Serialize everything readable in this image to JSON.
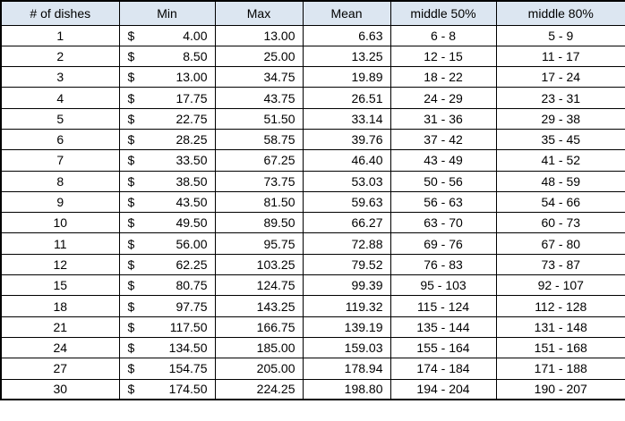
{
  "table": {
    "headers": [
      "# of dishes",
      "Min",
      "Max",
      "Mean",
      "middle 50%",
      "middle 80%"
    ],
    "currency_symbol": "$",
    "rows": [
      {
        "dishes": "1",
        "min": "4.00",
        "max": "13.00",
        "mean": "6.63",
        "mid50": "6 - 8",
        "mid80": "5 - 9"
      },
      {
        "dishes": "2",
        "min": "8.50",
        "max": "25.00",
        "mean": "13.25",
        "mid50": "12 - 15",
        "mid80": "11 - 17"
      },
      {
        "dishes": "3",
        "min": "13.00",
        "max": "34.75",
        "mean": "19.89",
        "mid50": "18 - 22",
        "mid80": "17 - 24"
      },
      {
        "dishes": "4",
        "min": "17.75",
        "max": "43.75",
        "mean": "26.51",
        "mid50": "24 - 29",
        "mid80": "23 - 31"
      },
      {
        "dishes": "5",
        "min": "22.75",
        "max": "51.50",
        "mean": "33.14",
        "mid50": "31 - 36",
        "mid80": "29 - 38"
      },
      {
        "dishes": "6",
        "min": "28.25",
        "max": "58.75",
        "mean": "39.76",
        "mid50": "37 - 42",
        "mid80": "35 - 45"
      },
      {
        "dishes": "7",
        "min": "33.50",
        "max": "67.25",
        "mean": "46.40",
        "mid50": "43 - 49",
        "mid80": "41 - 52"
      },
      {
        "dishes": "8",
        "min": "38.50",
        "max": "73.75",
        "mean": "53.03",
        "mid50": "50 - 56",
        "mid80": "48 - 59"
      },
      {
        "dishes": "9",
        "min": "43.50",
        "max": "81.50",
        "mean": "59.63",
        "mid50": "56 - 63",
        "mid80": "54 - 66"
      },
      {
        "dishes": "10",
        "min": "49.50",
        "max": "89.50",
        "mean": "66.27",
        "mid50": "63 - 70",
        "mid80": "60 - 73"
      },
      {
        "dishes": "11",
        "min": "56.00",
        "max": "95.75",
        "mean": "72.88",
        "mid50": "69 - 76",
        "mid80": "67 - 80"
      },
      {
        "dishes": "12",
        "min": "62.25",
        "max": "103.25",
        "mean": "79.52",
        "mid50": "76 - 83",
        "mid80": "73 - 87"
      },
      {
        "dishes": "15",
        "min": "80.75",
        "max": "124.75",
        "mean": "99.39",
        "mid50": "95 - 103",
        "mid80": "92 - 107"
      },
      {
        "dishes": "18",
        "min": "97.75",
        "max": "143.25",
        "mean": "119.32",
        "mid50": "115 - 124",
        "mid80": "112 - 128"
      },
      {
        "dishes": "21",
        "min": "117.50",
        "max": "166.75",
        "mean": "139.19",
        "mid50": "135 - 144",
        "mid80": "131 - 148"
      },
      {
        "dishes": "24",
        "min": "134.50",
        "max": "185.00",
        "mean": "159.03",
        "mid50": "155 - 164",
        "mid80": "151 - 168"
      },
      {
        "dishes": "27",
        "min": "154.75",
        "max": "205.00",
        "mean": "178.94",
        "mid50": "174 - 184",
        "mid80": "171 - 188"
      },
      {
        "dishes": "30",
        "min": "174.50",
        "max": "224.25",
        "mean": "198.80",
        "mid50": "194 - 204",
        "mid80": "190 - 207"
      }
    ]
  },
  "colors": {
    "header_fill": "#dce6f1",
    "border": "#000000",
    "text": "#000000"
  }
}
